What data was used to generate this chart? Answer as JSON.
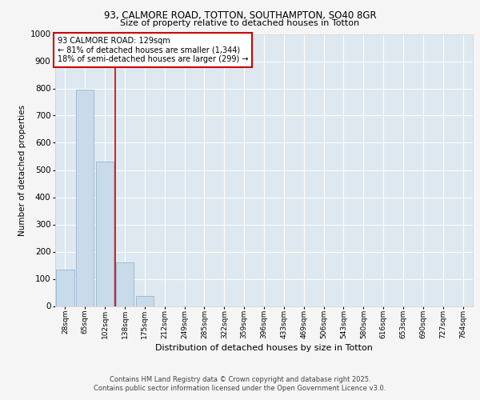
{
  "title_line1": "93, CALMORE ROAD, TOTTON, SOUTHAMPTON, SO40 8GR",
  "title_line2": "Size of property relative to detached houses in Totton",
  "xlabel": "Distribution of detached houses by size in Totton",
  "ylabel": "Number of detached properties",
  "categories": [
    "28sqm",
    "65sqm",
    "102sqm",
    "138sqm",
    "175sqm",
    "212sqm",
    "249sqm",
    "285sqm",
    "322sqm",
    "359sqm",
    "396sqm",
    "433sqm",
    "469sqm",
    "506sqm",
    "543sqm",
    "580sqm",
    "616sqm",
    "653sqm",
    "690sqm",
    "727sqm",
    "764sqm"
  ],
  "values": [
    135,
    795,
    530,
    160,
    37,
    0,
    0,
    0,
    0,
    0,
    0,
    0,
    0,
    0,
    0,
    0,
    0,
    0,
    0,
    0,
    0
  ],
  "bar_color": "#c9daea",
  "bar_edge_color": "#a0bcd0",
  "vline_x_idx": 2.5,
  "vline_color": "#cc0000",
  "annotation_text": "93 CALMORE ROAD: 129sqm\n← 81% of detached houses are smaller (1,344)\n18% of semi-detached houses are larger (299) →",
  "annotation_box_color": "#ffffff",
  "annotation_box_edge": "#cc0000",
  "ylim": [
    0,
    1000
  ],
  "yticks": [
    0,
    100,
    200,
    300,
    400,
    500,
    600,
    700,
    800,
    900,
    1000
  ],
  "plot_bg_color": "#dde8f0",
  "grid_color": "#ffffff",
  "fig_bg_color": "#f5f5f5",
  "footer_line1": "Contains HM Land Registry data © Crown copyright and database right 2025.",
  "footer_line2": "Contains public sector information licensed under the Open Government Licence v3.0."
}
